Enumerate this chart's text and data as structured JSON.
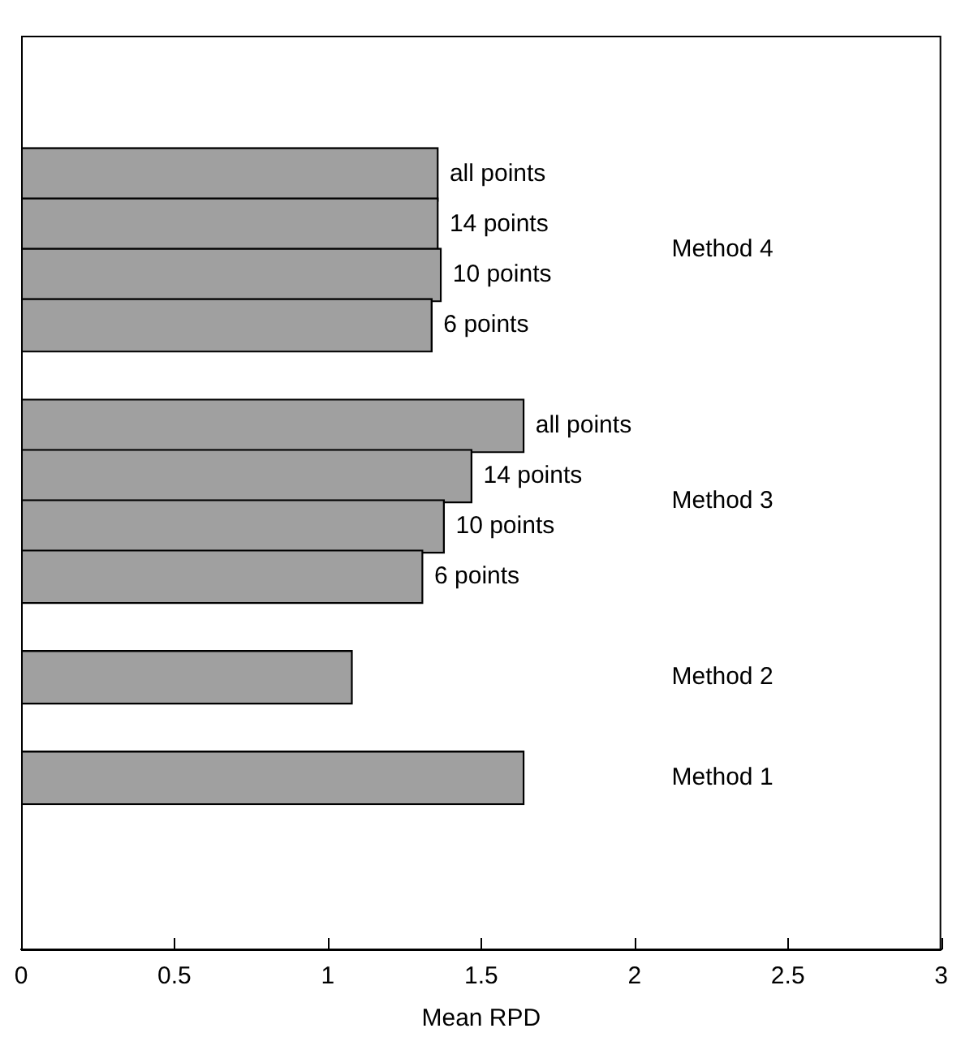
{
  "chart_data": {
    "type": "bar",
    "orientation": "horizontal",
    "xlabel": "Mean RPD",
    "categories": [
      "all points",
      "14 points",
      "10 points",
      "6 points",
      null,
      "all points",
      "14 points",
      "10 points",
      "6 points",
      null,
      null,
      null,
      null
    ],
    "values": [
      1.36,
      1.36,
      1.37,
      1.34,
      null,
      1.64,
      1.47,
      1.38,
      1.31,
      null,
      1.08,
      null,
      1.64
    ],
    "color": "#a0a0a0",
    "xlim": [
      0,
      3
    ],
    "xticks": [
      0,
      0.5,
      1,
      1.5,
      2,
      2.5,
      3
    ],
    "annotations": [
      "Method 4",
      "Method 3",
      "Method 2",
      "Method 1"
    ],
    "grid": false,
    "legend": false
  }
}
